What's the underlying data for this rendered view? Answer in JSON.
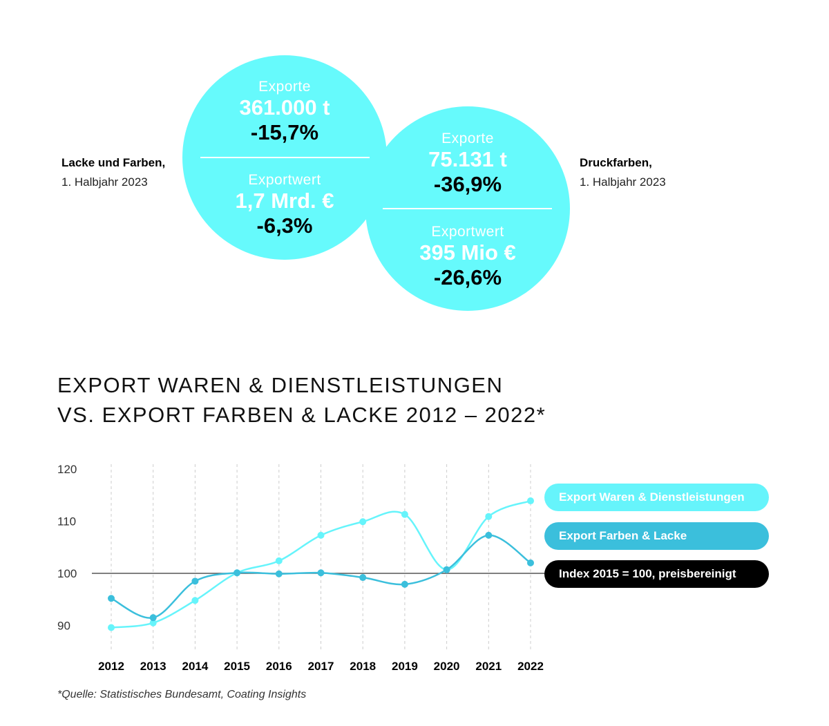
{
  "left_block": {
    "title": "Lacke und Farben,",
    "period": "1. Halbjahr 2023",
    "exports_label": "Exporte",
    "exports_value": "361.000 t",
    "exports_change": "-15,7%",
    "value_label": "Exportwert",
    "value_value": "1,7 Mrd. €",
    "value_change": "-6,3%"
  },
  "right_block": {
    "title": "Druckfarben,",
    "period": "1. Halbjahr 2023",
    "exports_label": "Exporte",
    "exports_value": "75.131 t",
    "exports_change": "-36,9%",
    "value_label": "Exportwert",
    "value_value": "395 Mio €",
    "value_change": "-26,6%"
  },
  "colors": {
    "circle": "#66fafc",
    "series_light": "#66f4fb",
    "series_dark": "#3bbfdc",
    "index_pill": "#000000"
  },
  "chart_data": {
    "type": "line",
    "title_line1": "EXPORT WAREN & DIENSTLEISTUNGEN",
    "title_line2": "VS. EXPORT FARBEN & LACKE 2012 – 2022*",
    "categories": [
      "2012",
      "2013",
      "2014",
      "2015",
      "2016",
      "2017",
      "2018",
      "2019",
      "2020",
      "2021",
      "2022"
    ],
    "yticks": [
      "120",
      "110",
      "100",
      "90"
    ],
    "ylim": [
      88,
      120
    ],
    "reference_line": 100,
    "grid": "vertical dashed",
    "legend_position": "right",
    "series": [
      {
        "name": "Export Waren & Dienstleistungen",
        "color": "#66f4fb",
        "values": [
          89.6,
          90.5,
          94.8,
          100.1,
          102.4,
          107.3,
          109.9,
          111.3,
          100.7,
          110.9,
          113.9
        ]
      },
      {
        "name": "Export Farben & Lacke",
        "color": "#3bbfdc",
        "values": [
          95.2,
          91.5,
          98.5,
          100.1,
          99.9,
          100.1,
          99.2,
          97.9,
          100.7,
          107.3,
          102.0
        ]
      }
    ],
    "index_note": "Index 2015 = 100, preisbereinigt",
    "source": "*Quelle: Statistisches Bundesamt, Coating Insights"
  }
}
